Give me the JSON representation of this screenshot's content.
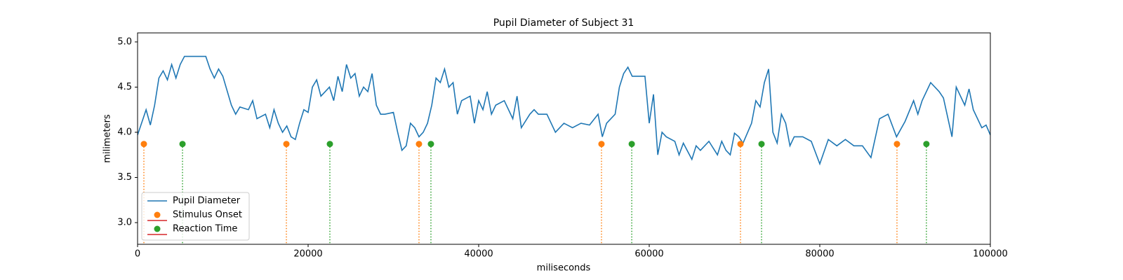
{
  "chart_data": {
    "type": "line",
    "title": "Pupil Diameter of Subject 31",
    "x_label": "miliseconds",
    "y_label": "milimeters",
    "xlim": [
      0,
      100000
    ],
    "ylim": [
      2.76,
      5.1
    ],
    "xticks": [
      0,
      20000,
      40000,
      60000,
      80000,
      100000
    ],
    "yticks": [
      {
        "value": 3,
        "label": "3.0"
      },
      3.5,
      {
        "value": 4,
        "label": "4.0"
      },
      4.5,
      {
        "value": 5,
        "label": "5.0"
      }
    ],
    "grid": false,
    "legend": "lower left",
    "series": [
      {
        "name": "Pupil Diameter",
        "color": "#1f77b4",
        "x": [
          0,
          1000,
          1500,
          2000,
          2500,
          3000,
          3500,
          4000,
          4500,
          5000,
          5500,
          6000,
          8000,
          8500,
          9000,
          9500,
          10000,
          11000,
          11500,
          12000,
          13000,
          13500,
          14000,
          15000,
          15500,
          16000,
          16500,
          17000,
          17500,
          18000,
          18500,
          19000,
          19500,
          20000,
          20500,
          21000,
          21500,
          22000,
          22500,
          23000,
          23500,
          24000,
          24500,
          25000,
          25500,
          26000,
          26500,
          27000,
          27500,
          28000,
          28500,
          29000,
          30000,
          30500,
          31000,
          31500,
          32000,
          32500,
          33000,
          33500,
          34000,
          34500,
          35000,
          35500,
          36000,
          36500,
          37000,
          37500,
          38000,
          39000,
          39500,
          40000,
          40500,
          41000,
          41500,
          42000,
          43000,
          44000,
          44500,
          45000,
          46000,
          46500,
          47000,
          48000,
          49000,
          50000,
          51000,
          52000,
          53000,
          54000,
          54500,
          55000,
          56000,
          56500,
          57000,
          57500,
          58000,
          59000,
          59500,
          60000,
          60500,
          61000,
          61500,
          62000,
          63000,
          63500,
          64000,
          65000,
          65500,
          66000,
          67000,
          68000,
          68500,
          69000,
          69500,
          70000,
          70500,
          71000,
          72000,
          72500,
          73000,
          73500,
          74000,
          74500,
          75000,
          75500,
          76000,
          76500,
          77000,
          78000,
          79000,
          80000,
          81000,
          82000,
          83000,
          84000,
          85000,
          86000,
          87000,
          88000,
          89000,
          90000,
          91000,
          91500,
          92000,
          93000,
          94000,
          94500,
          95500,
          96000,
          97000,
          97500,
          98000,
          99000,
          99500,
          100000
        ],
        "values": [
          3.97,
          4.25,
          4.08,
          4.3,
          4.6,
          4.68,
          4.58,
          4.75,
          4.6,
          4.75,
          4.84,
          4.84,
          4.84,
          4.7,
          4.6,
          4.7,
          4.62,
          4.3,
          4.2,
          4.28,
          4.25,
          4.35,
          4.15,
          4.2,
          4.05,
          4.25,
          4.1,
          4.0,
          4.07,
          3.95,
          3.92,
          4.1,
          4.25,
          4.22,
          4.5,
          4.58,
          4.4,
          4.45,
          4.5,
          4.35,
          4.62,
          4.45,
          4.75,
          4.6,
          4.65,
          4.4,
          4.5,
          4.45,
          4.65,
          4.3,
          4.2,
          4.2,
          4.22,
          4.0,
          3.8,
          3.85,
          4.1,
          4.05,
          3.95,
          4.0,
          4.1,
          4.3,
          4.6,
          4.55,
          4.7,
          4.5,
          4.55,
          4.2,
          4.35,
          4.4,
          4.1,
          4.35,
          4.25,
          4.45,
          4.2,
          4.3,
          4.35,
          4.15,
          4.4,
          4.05,
          4.2,
          4.25,
          4.2,
          4.2,
          4.0,
          4.1,
          4.05,
          4.1,
          4.08,
          4.2,
          3.95,
          4.1,
          4.2,
          4.5,
          4.65,
          4.72,
          4.62,
          4.62,
          4.62,
          4.1,
          4.42,
          3.75,
          4.0,
          3.95,
          3.9,
          3.75,
          3.88,
          3.7,
          3.85,
          3.8,
          3.9,
          3.75,
          3.9,
          3.8,
          3.75,
          3.99,
          3.95,
          3.88,
          4.1,
          4.35,
          4.28,
          4.55,
          4.7,
          4.0,
          3.88,
          4.2,
          4.1,
          3.85,
          3.95,
          3.95,
          3.9,
          3.65,
          3.92,
          3.85,
          3.92,
          3.85,
          3.85,
          3.72,
          4.15,
          4.2,
          3.95,
          4.12,
          4.35,
          4.2,
          4.35,
          4.55,
          4.45,
          4.38,
          3.95,
          4.5,
          4.3,
          4.48,
          4.25,
          4.05,
          4.08,
          3.97
        ]
      }
    ],
    "stems": [
      {
        "name": "Stimulus Onset",
        "color": "#ff7f0e",
        "baseline_color": "#d62728",
        "x": [
          740,
          17450,
          33000,
          54400,
          70700,
          89050
        ],
        "values": [
          3.87,
          3.87,
          3.87,
          3.87,
          3.87,
          3.87
        ]
      },
      {
        "name": "Reaction Time",
        "color": "#2ca02c",
        "baseline_color": "#d62728",
        "x": [
          5270,
          22550,
          34400,
          57950,
          73170,
          92500
        ],
        "values": [
          3.87,
          3.87,
          3.87,
          3.87,
          3.87,
          3.87
        ]
      }
    ]
  }
}
